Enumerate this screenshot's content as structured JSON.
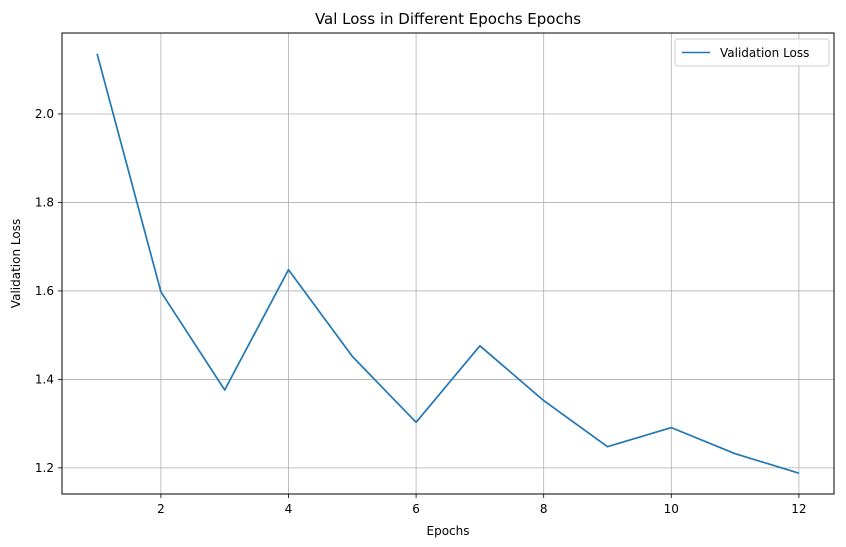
{
  "chart_data": {
    "type": "line",
    "title": "Val Loss in Different Epochs Epochs",
    "xlabel": "Epochs",
    "ylabel": "Validation Loss",
    "x": [
      1,
      2,
      3,
      4,
      5,
      6,
      7,
      8,
      9,
      10,
      11,
      12
    ],
    "series": [
      {
        "name": "Validation Loss",
        "color": "#1f77b4",
        "values": [
          2.136,
          1.598,
          1.376,
          1.648,
          1.452,
          1.303,
          1.476,
          1.352,
          1.248,
          1.291,
          1.232,
          1.188
        ]
      }
    ],
    "xlim": [
      0.45,
      12.55
    ],
    "ylim": [
      1.141,
      2.183
    ],
    "xticks": [
      2,
      4,
      6,
      8,
      10,
      12
    ],
    "xtick_labels": [
      "2",
      "4",
      "6",
      "8",
      "10",
      "12"
    ],
    "yticks": [
      1.2,
      1.4,
      1.6,
      1.8,
      2.0
    ],
    "ytick_labels": [
      "1.2",
      "1.4",
      "1.6",
      "1.8",
      "2.0"
    ],
    "grid": true,
    "legend_position": "top-right"
  }
}
